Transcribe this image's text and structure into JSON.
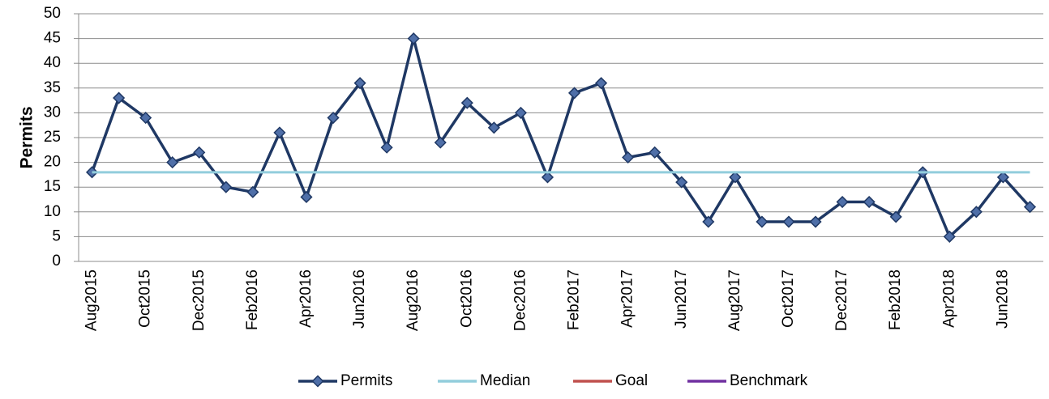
{
  "chart_data": {
    "type": "line",
    "y_label": "Permits",
    "categories": [
      "Aug2015",
      null,
      "Oct2015",
      null,
      "Dec2015",
      null,
      "Feb2016",
      null,
      "Apr2016",
      null,
      "Jun2016",
      null,
      "Aug2016",
      null,
      "Oct2016",
      null,
      "Dec2016",
      null,
      "Feb2017",
      null,
      "Apr2017",
      null,
      "Jun2017",
      null,
      "Aug2017",
      null,
      "Oct2017",
      null,
      "Dec2017",
      null,
      "Feb2018",
      null,
      "Apr2018",
      null,
      "Jun2018",
      null
    ],
    "series": [
      {
        "name": "Permits",
        "color": "#1f3864",
        "marker": "diamond",
        "values": [
          18,
          33,
          29,
          20,
          22,
          15,
          14,
          26,
          13,
          29,
          36,
          23,
          45,
          24,
          32,
          27,
          30,
          17,
          34,
          36,
          21,
          22,
          16,
          8,
          17,
          8,
          8,
          8,
          12,
          12,
          9,
          18,
          5,
          10,
          17,
          11
        ]
      },
      {
        "name": "Median",
        "color": "#92cddc",
        "values": [
          18,
          18,
          18,
          18,
          18,
          18,
          18,
          18,
          18,
          18,
          18,
          18,
          18,
          18,
          18,
          18,
          18,
          18,
          18,
          18,
          18,
          18,
          18,
          18,
          18,
          18,
          18,
          18,
          18,
          18,
          18,
          18,
          18,
          18,
          18,
          18
        ]
      },
      {
        "name": "Goal",
        "color": "#c0504d",
        "values": [
          null,
          null,
          null,
          null,
          null,
          null,
          null,
          null,
          null,
          null,
          null,
          null,
          null,
          null,
          null,
          null,
          null,
          null,
          null,
          null,
          null,
          null,
          null,
          null,
          null,
          null,
          null,
          null,
          null,
          null,
          null,
          null,
          null,
          null,
          null,
          null
        ]
      },
      {
        "name": "Benchmark",
        "color": "#7030a0",
        "values": [
          null,
          null,
          null,
          null,
          null,
          null,
          null,
          null,
          null,
          null,
          null,
          null,
          null,
          null,
          null,
          null,
          null,
          null,
          null,
          null,
          null,
          null,
          null,
          null,
          null,
          null,
          null,
          null,
          null,
          null,
          null,
          null,
          null,
          null,
          null,
          null
        ]
      }
    ],
    "ylim": [
      0,
      50
    ],
    "yticks": [
      0,
      5,
      10,
      15,
      20,
      25,
      30,
      35,
      40,
      45,
      50
    ],
    "grid": true,
    "legend": "bottom"
  }
}
